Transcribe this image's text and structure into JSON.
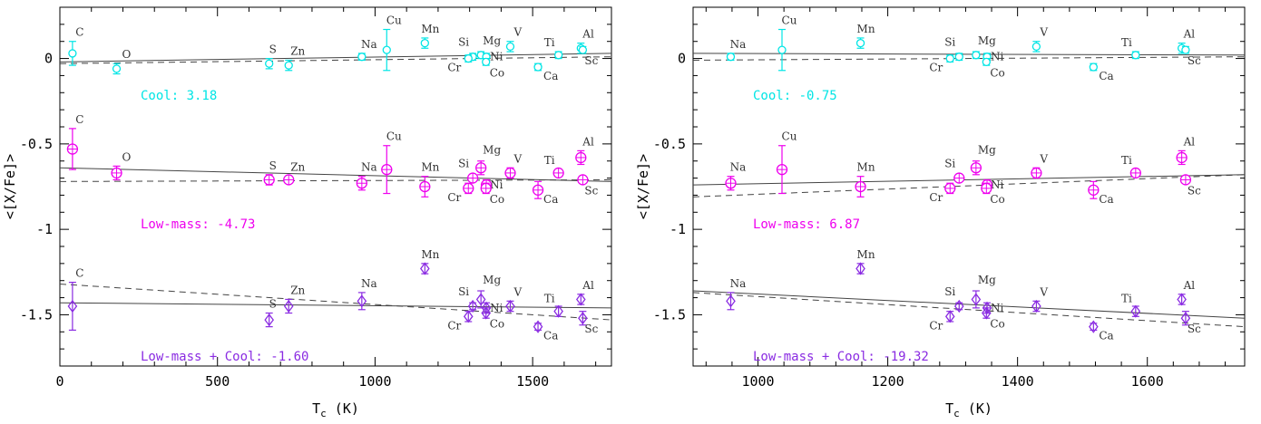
{
  "chart_data": [
    {
      "type": "scatter",
      "panel": "left",
      "xlabel": "T_c (K)",
      "ylabel": "<[X/Fe]>",
      "xlim": [
        0,
        1750
      ],
      "ylim": [
        -1.8,
        0.3
      ],
      "xticks": [
        0,
        500,
        1000,
        1500
      ],
      "yticks": [
        0,
        -0.5,
        -1,
        -1.5
      ],
      "xtick_labels": [
        "0",
        "500",
        "1000",
        "1500"
      ],
      "ytick_labels": [
        "0",
        "-0.5",
        "-1",
        "-1.5"
      ],
      "grid": false,
      "series": [
        {
          "group": "cool",
          "color": "#00e5e5",
          "marker": "circle",
          "annotation": "Cool: 3.18",
          "fit_solid": [
            [
              0,
              -0.02
            ],
            [
              1750,
              0.03
            ]
          ],
          "fit_dashed": [
            [
              0,
              -0.03
            ],
            [
              1750,
              0.01
            ]
          ],
          "points": [
            {
              "el": "C",
              "x": 40,
              "y": 0.03,
              "err": 0.07
            },
            {
              "el": "O",
              "x": 180,
              "y": -0.06,
              "err": 0.03
            },
            {
              "el": "S",
              "x": 664,
              "y": -0.03,
              "err": 0.03
            },
            {
              "el": "Zn",
              "x": 726,
              "y": -0.04,
              "err": 0.03
            },
            {
              "el": "Na",
              "x": 958,
              "y": 0.01,
              "err": 0.02
            },
            {
              "el": "Cu",
              "x": 1037,
              "y": 0.05,
              "err": 0.12
            },
            {
              "el": "Mn",
              "x": 1158,
              "y": 0.09,
              "err": 0.03
            },
            {
              "el": "Si",
              "x": 1310,
              "y": 0.01,
              "err": 0.02
            },
            {
              "el": "Cr",
              "x": 1296,
              "y": 0.0,
              "err": 0.02
            },
            {
              "el": "Mg",
              "x": 1336,
              "y": 0.02,
              "err": 0.02
            },
            {
              "el": "Ni",
              "x": 1353,
              "y": 0.01,
              "err": 0.02
            },
            {
              "el": "Co",
              "x": 1352,
              "y": -0.02,
              "err": 0.02
            },
            {
              "el": "V",
              "x": 1429,
              "y": 0.07,
              "err": 0.03
            },
            {
              "el": "Ca",
              "x": 1517,
              "y": -0.05,
              "err": 0.02
            },
            {
              "el": "Ti",
              "x": 1582,
              "y": 0.02,
              "err": 0.02
            },
            {
              "el": "Al",
              "x": 1653,
              "y": 0.06,
              "err": 0.03
            },
            {
              "el": "Sc",
              "x": 1659,
              "y": 0.05,
              "err": 0.02
            }
          ]
        },
        {
          "group": "low-mass",
          "color": "#ee00ee",
          "marker": "circle-plus",
          "annotation": "Low-mass: -4.73",
          "fit_solid": [
            [
              0,
              -0.64
            ],
            [
              1750,
              -0.72
            ]
          ],
          "fit_dashed": [
            [
              0,
              -0.72
            ],
            [
              1750,
              -0.71
            ]
          ],
          "points": [
            {
              "el": "C",
              "x": 40,
              "y": -0.53,
              "err": 0.12
            },
            {
              "el": "O",
              "x": 180,
              "y": -0.67,
              "err": 0.04
            },
            {
              "el": "S",
              "x": 664,
              "y": -0.71,
              "err": 0.03
            },
            {
              "el": "Zn",
              "x": 726,
              "y": -0.71,
              "err": 0.02
            },
            {
              "el": "Na",
              "x": 958,
              "y": -0.73,
              "err": 0.04
            },
            {
              "el": "Cu",
              "x": 1037,
              "y": -0.65,
              "err": 0.14
            },
            {
              "el": "Mn",
              "x": 1158,
              "y": -0.75,
              "err": 0.06
            },
            {
              "el": "Si",
              "x": 1310,
              "y": -0.7,
              "err": 0.02
            },
            {
              "el": "Cr",
              "x": 1296,
              "y": -0.76,
              "err": 0.03
            },
            {
              "el": "Mg",
              "x": 1336,
              "y": -0.64,
              "err": 0.04
            },
            {
              "el": "Ni",
              "x": 1353,
              "y": -0.74,
              "err": 0.03
            },
            {
              "el": "Co",
              "x": 1352,
              "y": -0.76,
              "err": 0.03
            },
            {
              "el": "V",
              "x": 1429,
              "y": -0.67,
              "err": 0.03
            },
            {
              "el": "Ca",
              "x": 1517,
              "y": -0.77,
              "err": 0.05
            },
            {
              "el": "Ti",
              "x": 1582,
              "y": -0.67,
              "err": 0.02
            },
            {
              "el": "Al",
              "x": 1653,
              "y": -0.58,
              "err": 0.04
            },
            {
              "el": "Sc",
              "x": 1659,
              "y": -0.71,
              "err": 0.02
            }
          ]
        },
        {
          "group": "low-mass-cool",
          "color": "#8a2be2",
          "marker": "diamond",
          "annotation": "Low-mass + Cool: -1.60",
          "fit_solid": [
            [
              0,
              -1.43
            ],
            [
              1750,
              -1.46
            ]
          ],
          "fit_dashed": [
            [
              0,
              -1.32
            ],
            [
              1750,
              -1.53
            ]
          ],
          "points": [
            {
              "el": "C",
              "x": 40,
              "y": -1.45,
              "err": 0.14
            },
            {
              "el": "S",
              "x": 664,
              "y": -1.53,
              "err": 0.04
            },
            {
              "el": "Zn",
              "x": 726,
              "y": -1.45,
              "err": 0.04
            },
            {
              "el": "Na",
              "x": 958,
              "y": -1.42,
              "err": 0.05
            },
            {
              "el": "Mn",
              "x": 1158,
              "y": -1.23,
              "err": 0.03
            },
            {
              "el": "Si",
              "x": 1310,
              "y": -1.45,
              "err": 0.02
            },
            {
              "el": "Cr",
              "x": 1296,
              "y": -1.51,
              "err": 0.03
            },
            {
              "el": "Mg",
              "x": 1336,
              "y": -1.41,
              "err": 0.05
            },
            {
              "el": "Ni",
              "x": 1353,
              "y": -1.46,
              "err": 0.03
            },
            {
              "el": "Co",
              "x": 1352,
              "y": -1.49,
              "err": 0.03
            },
            {
              "el": "V",
              "x": 1429,
              "y": -1.45,
              "err": 0.03
            },
            {
              "el": "Ca",
              "x": 1517,
              "y": -1.57,
              "err": 0.02
            },
            {
              "el": "Ti",
              "x": 1582,
              "y": -1.48,
              "err": 0.03
            },
            {
              "el": "Al",
              "x": 1653,
              "y": -1.41,
              "err": 0.03
            },
            {
              "el": "Sc",
              "x": 1659,
              "y": -1.52,
              "err": 0.04
            }
          ]
        }
      ]
    },
    {
      "type": "scatter",
      "panel": "right",
      "xlabel": "T_c (K)",
      "ylabel": "<[X/Fe]>",
      "xlim": [
        900,
        1750
      ],
      "ylim": [
        -1.8,
        0.3
      ],
      "xticks": [
        1000,
        1200,
        1400,
        1600
      ],
      "yticks": [
        0,
        -0.5,
        -1,
        -1.5
      ],
      "xtick_labels": [
        "1000",
        "1200",
        "1400",
        "1600"
      ],
      "ytick_labels": [
        "0",
        "-0.5",
        "-1",
        "-1.5"
      ],
      "grid": false,
      "series": [
        {
          "group": "cool",
          "color": "#00e5e5",
          "marker": "circle",
          "annotation": "Cool: -0.75",
          "fit_solid": [
            [
              900,
              0.03
            ],
            [
              1750,
              0.02
            ]
          ],
          "fit_dashed": [
            [
              900,
              -0.01
            ],
            [
              1750,
              0.01
            ]
          ],
          "points": [
            {
              "el": "Na",
              "x": 958,
              "y": 0.01,
              "err": 0.02
            },
            {
              "el": "Cu",
              "x": 1037,
              "y": 0.05,
              "err": 0.12
            },
            {
              "el": "Mn",
              "x": 1158,
              "y": 0.09,
              "err": 0.03
            },
            {
              "el": "Si",
              "x": 1310,
              "y": 0.01,
              "err": 0.02
            },
            {
              "el": "Cr",
              "x": 1296,
              "y": 0.0,
              "err": 0.02
            },
            {
              "el": "Mg",
              "x": 1336,
              "y": 0.02,
              "err": 0.02
            },
            {
              "el": "Ni",
              "x": 1353,
              "y": 0.01,
              "err": 0.02
            },
            {
              "el": "Co",
              "x": 1352,
              "y": -0.02,
              "err": 0.02
            },
            {
              "el": "V",
              "x": 1429,
              "y": 0.07,
              "err": 0.03
            },
            {
              "el": "Ca",
              "x": 1517,
              "y": -0.05,
              "err": 0.02
            },
            {
              "el": "Ti",
              "x": 1582,
              "y": 0.02,
              "err": 0.02
            },
            {
              "el": "Al",
              "x": 1653,
              "y": 0.06,
              "err": 0.03
            },
            {
              "el": "Sc",
              "x": 1659,
              "y": 0.05,
              "err": 0.02
            }
          ]
        },
        {
          "group": "low-mass",
          "color": "#ee00ee",
          "marker": "circle-plus",
          "annotation": "Low-mass: 6.87",
          "fit_solid": [
            [
              900,
              -0.74
            ],
            [
              1750,
              -0.68
            ]
          ],
          "fit_dashed": [
            [
              900,
              -0.81
            ],
            [
              1750,
              -0.68
            ]
          ],
          "points": [
            {
              "el": "Na",
              "x": 958,
              "y": -0.73,
              "err": 0.04
            },
            {
              "el": "Cu",
              "x": 1037,
              "y": -0.65,
              "err": 0.14
            },
            {
              "el": "Mn",
              "x": 1158,
              "y": -0.75,
              "err": 0.06
            },
            {
              "el": "Si",
              "x": 1310,
              "y": -0.7,
              "err": 0.02
            },
            {
              "el": "Cr",
              "x": 1296,
              "y": -0.76,
              "err": 0.03
            },
            {
              "el": "Mg",
              "x": 1336,
              "y": -0.64,
              "err": 0.04
            },
            {
              "el": "Ni",
              "x": 1353,
              "y": -0.74,
              "err": 0.03
            },
            {
              "el": "Co",
              "x": 1352,
              "y": -0.76,
              "err": 0.03
            },
            {
              "el": "V",
              "x": 1429,
              "y": -0.67,
              "err": 0.03
            },
            {
              "el": "Ca",
              "x": 1517,
              "y": -0.77,
              "err": 0.05
            },
            {
              "el": "Ti",
              "x": 1582,
              "y": -0.67,
              "err": 0.02
            },
            {
              "el": "Al",
              "x": 1653,
              "y": -0.58,
              "err": 0.04
            },
            {
              "el": "Sc",
              "x": 1659,
              "y": -0.71,
              "err": 0.02
            }
          ]
        },
        {
          "group": "low-mass-cool",
          "color": "#8a2be2",
          "marker": "diamond",
          "annotation": "Low-mass + Cool: -19.32",
          "fit_solid": [
            [
              900,
              -1.36
            ],
            [
              1750,
              -1.52
            ]
          ],
          "fit_dashed": [
            [
              900,
              -1.37
            ],
            [
              1750,
              -1.57
            ]
          ],
          "points": [
            {
              "el": "Na",
              "x": 958,
              "y": -1.42,
              "err": 0.05
            },
            {
              "el": "Mn",
              "x": 1158,
              "y": -1.23,
              "err": 0.03
            },
            {
              "el": "Si",
              "x": 1310,
              "y": -1.45,
              "err": 0.02
            },
            {
              "el": "Cr",
              "x": 1296,
              "y": -1.51,
              "err": 0.03
            },
            {
              "el": "Mg",
              "x": 1336,
              "y": -1.41,
              "err": 0.05
            },
            {
              "el": "Ni",
              "x": 1353,
              "y": -1.46,
              "err": 0.03
            },
            {
              "el": "Co",
              "x": 1352,
              "y": -1.49,
              "err": 0.03
            },
            {
              "el": "V",
              "x": 1429,
              "y": -1.45,
              "err": 0.03
            },
            {
              "el": "Ca",
              "x": 1517,
              "y": -1.57,
              "err": 0.02
            },
            {
              "el": "Ti",
              "x": 1582,
              "y": -1.48,
              "err": 0.03
            },
            {
              "el": "Al",
              "x": 1653,
              "y": -1.41,
              "err": 0.03
            },
            {
              "el": "Sc",
              "x": 1659,
              "y": -1.52,
              "err": 0.04
            }
          ]
        }
      ]
    }
  ]
}
